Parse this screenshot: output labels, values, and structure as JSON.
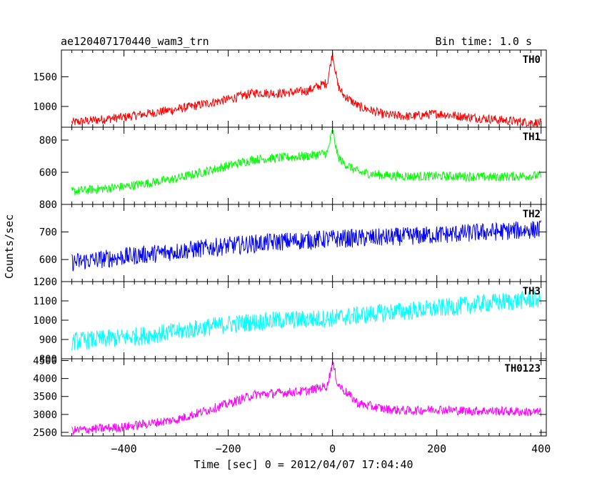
{
  "header": {
    "title": "ae120407170440_wam3_trn",
    "bin_time": "Bin time: 1.0 s"
  },
  "chart_data": {
    "type": "line",
    "title": "ae120407170440_wam3_trn",
    "xlabel": "Time [sec] 0 = 2012/04/07 17:04:40",
    "ylabel": "Counts/sec",
    "xlim": [
      -520,
      410
    ],
    "x_ticks": [
      -400,
      -200,
      0,
      200,
      400
    ],
    "x_tick_labels": [
      "−400",
      "−200",
      "0",
      "200",
      "400"
    ],
    "panels": [
      {
        "name": "TH0",
        "color": "#ff0000",
        "ylim": [
          650,
          1950
        ],
        "y_ticks": [
          1000,
          1500
        ],
        "y_tick_labels": [
          "1000",
          "1500"
        ],
        "x": [
          -500,
          -400,
          -300,
          -200,
          -150,
          -100,
          -50,
          -10,
          0,
          10,
          20,
          50,
          100,
          150,
          200,
          250,
          300,
          350,
          400
        ],
        "y": [
          730,
          820,
          950,
          1120,
          1230,
          1220,
          1260,
          1400,
          1900,
          1360,
          1200,
          1000,
          860,
          830,
          880,
          830,
          790,
          750,
          720
        ]
      },
      {
        "name": "TH1",
        "color": "#00ff00",
        "ylim": [
          400,
          880
        ],
        "y_ticks": [
          400,
          600,
          800
        ],
        "y_tick_labels": [
          "",
          "600",
          "800"
        ],
        "x": [
          -500,
          -400,
          -300,
          -200,
          -150,
          -100,
          -50,
          -10,
          0,
          10,
          20,
          50,
          100,
          150,
          200,
          250,
          300,
          350,
          400
        ],
        "y": [
          480,
          510,
          560,
          640,
          680,
          690,
          700,
          720,
          860,
          700,
          660,
          600,
          580,
          575,
          575,
          575,
          570,
          575,
          580
        ]
      },
      {
        "name": "TH2",
        "color": "#0000ff",
        "ylim": [
          520,
          800
        ],
        "y_ticks": [
          600,
          700,
          800
        ],
        "y_tick_labels": [
          "600",
          "700",
          "800"
        ],
        "x": [
          -500,
          -400,
          -300,
          -200,
          -100,
          0,
          100,
          200,
          300,
          400
        ],
        "y": [
          590,
          610,
          630,
          650,
          665,
          675,
          680,
          690,
          700,
          710
        ]
      },
      {
        "name": "TH3",
        "color": "#00ffff",
        "ylim": [
          800,
          1200
        ],
        "y_ticks": [
          800,
          900,
          1000,
          1100,
          1200
        ],
        "y_tick_labels": [
          "800",
          "900",
          "1000",
          "1100",
          "1200"
        ],
        "x": [
          -500,
          -400,
          -300,
          -200,
          -100,
          0,
          100,
          200,
          300,
          400
        ],
        "y": [
          890,
          910,
          940,
          980,
          1000,
          1010,
          1040,
          1060,
          1090,
          1110
        ]
      },
      {
        "name": "TH0123",
        "color": "#ff00ff",
        "ylim": [
          2400,
          4550
        ],
        "y_ticks": [
          2500,
          3000,
          3500,
          4000,
          4500
        ],
        "y_tick_labels": [
          "2500",
          "3000",
          "3500",
          "4000",
          "4500"
        ],
        "x": [
          -500,
          -400,
          -300,
          -200,
          -150,
          -100,
          -50,
          -10,
          0,
          10,
          20,
          50,
          100,
          150,
          200,
          250,
          300,
          350,
          400
        ],
        "y": [
          2550,
          2650,
          2850,
          3300,
          3550,
          3600,
          3650,
          3800,
          4450,
          3850,
          3700,
          3300,
          3150,
          3100,
          3150,
          3100,
          3100,
          3080,
          3060
        ]
      }
    ]
  }
}
